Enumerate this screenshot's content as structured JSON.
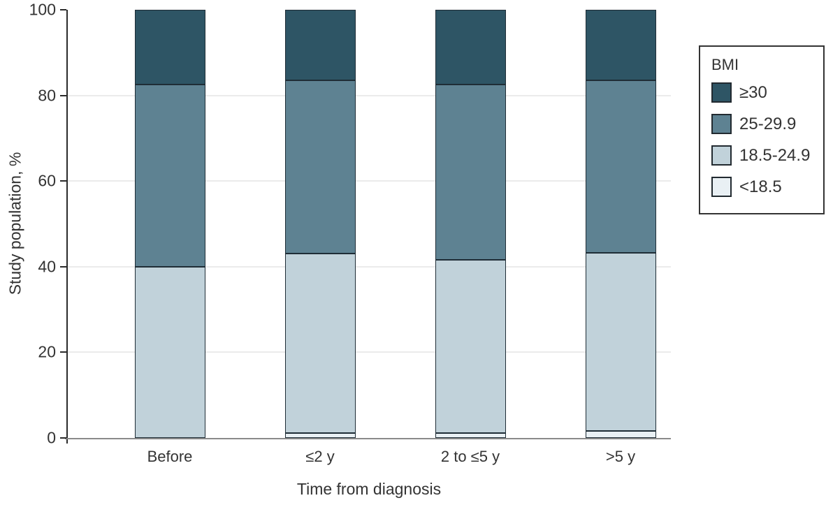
{
  "chart_data": {
    "type": "bar",
    "stacked": true,
    "orientation": "vertical",
    "xlabel": "Time from diagnosis",
    "ylabel": "Study population, %",
    "ylim": [
      0,
      100
    ],
    "yticks": [
      0,
      20,
      40,
      60,
      80,
      100
    ],
    "gridlines": [
      20,
      40,
      60,
      80
    ],
    "grid": "horizontal-light-gray",
    "categories": [
      "Before",
      "≤2 y",
      "2 to ≤5 y",
      ">5 y"
    ],
    "series": [
      {
        "name": "<18.5",
        "color": "#e9f0f4",
        "values": [
          0,
          1.2,
          1.2,
          1.6
        ]
      },
      {
        "name": "18.5-24.9",
        "color": "#c1d2da",
        "values": [
          40,
          41.8,
          40.4,
          41.7
        ]
      },
      {
        "name": "25-29.9",
        "color": "#5e8292",
        "values": [
          42.5,
          40.5,
          40.9,
          40.2
        ]
      },
      {
        "name": "≥30",
        "color": "#2e5565",
        "values": [
          17.5,
          16.5,
          17.5,
          16.5
        ]
      }
    ],
    "legend": {
      "title": "BMI",
      "position": "right",
      "items": [
        {
          "label": "≥30",
          "color": "#2e5565"
        },
        {
          "label": "25-29.9",
          "color": "#5e8292"
        },
        {
          "label": "18.5-24.9",
          "color": "#c1d2da"
        },
        {
          "label": "<18.5",
          "color": "#e9f0f4"
        }
      ]
    }
  },
  "colors": {
    "background": "#ffffff",
    "bar_border": "#1f2d36",
    "axis_line": "#2b2b2b",
    "baseline": "#8a8a8a",
    "gridline": "#ebebeb",
    "text": "#333333",
    "legend_border": "#333333"
  }
}
